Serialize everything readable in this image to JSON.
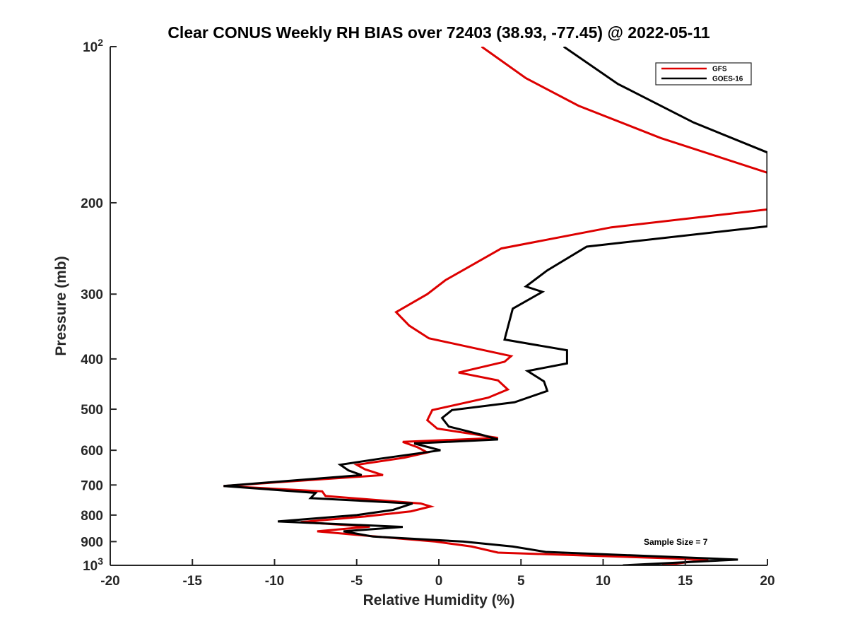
{
  "chart_data": {
    "type": "line",
    "title": "Clear CONUS Weekly RH BIAS over 72403 (38.93, -77.45) @ 2022-05-11",
    "xlabel": "Relative Humidity (%)",
    "ylabel": "Pressure (mb)",
    "xlim": [
      -20,
      20
    ],
    "ylim": [
      100,
      1000
    ],
    "yscale": "log",
    "y_reversed": true,
    "grid": false,
    "legend_position": "top-right",
    "xticks": [
      "-20",
      "-15",
      "-10",
      "-5",
      "0",
      "5",
      "10",
      "15",
      "20"
    ],
    "yticks": [
      {
        "value": 100,
        "base": "10",
        "exp": "2"
      },
      {
        "value": 200,
        "base": "200",
        "exp": ""
      },
      {
        "value": 300,
        "base": "300",
        "exp": ""
      },
      {
        "value": 400,
        "base": "400",
        "exp": ""
      },
      {
        "value": 500,
        "base": "500",
        "exp": ""
      },
      {
        "value": 600,
        "base": "600",
        "exp": ""
      },
      {
        "value": 700,
        "base": "700",
        "exp": ""
      },
      {
        "value": 800,
        "base": "800",
        "exp": ""
      },
      {
        "value": 900,
        "base": "900",
        "exp": ""
      },
      {
        "value": 1000,
        "base": "10",
        "exp": "3"
      }
    ],
    "annotation": "Sample Size = 7",
    "series": [
      {
        "name": "GFS",
        "color": "#dd0000",
        "points": [
          [
            2.6,
            100
          ],
          [
            5.3,
            115
          ],
          [
            8.5,
            130
          ],
          [
            13.5,
            150
          ],
          [
            20,
            175
          ],
          [
            20,
            206
          ],
          [
            10.5,
            223
          ],
          [
            3.8,
            245
          ],
          [
            0.4,
            282
          ],
          [
            -0.7,
            300
          ],
          [
            -2.6,
            325
          ],
          [
            -1.8,
            345
          ],
          [
            -0.6,
            365
          ],
          [
            4.4,
            395
          ],
          [
            4.0,
            405
          ],
          [
            1.2,
            425
          ],
          [
            3.6,
            440
          ],
          [
            4.2,
            458
          ],
          [
            3.0,
            475
          ],
          [
            -0.4,
            502
          ],
          [
            -0.7,
            525
          ],
          [
            -0.1,
            545
          ],
          [
            3.6,
            568
          ],
          [
            -2.2,
            578
          ],
          [
            -1.3,
            592
          ],
          [
            -0.7,
            606
          ],
          [
            -2.1,
            620
          ],
          [
            -5.0,
            640
          ],
          [
            -4.5,
            653
          ],
          [
            -3.4,
            670
          ],
          [
            -13.1,
            703
          ],
          [
            -7.1,
            720
          ],
          [
            -6.9,
            735
          ],
          [
            -1.1,
            760
          ],
          [
            -0.5,
            770
          ],
          [
            -1.7,
            787
          ],
          [
            -4.5,
            805
          ],
          [
            -8.4,
            825
          ],
          [
            -4.2,
            842
          ],
          [
            -7.4,
            860
          ],
          [
            -3.8,
            880
          ],
          [
            -0.2,
            900
          ],
          [
            2.0,
            920
          ],
          [
            3.6,
            945
          ],
          [
            16.4,
            975
          ],
          [
            13.6,
            1000
          ]
        ]
      },
      {
        "name": "GOES-16",
        "color": "#000000",
        "points": [
          [
            7.6,
            100
          ],
          [
            10.9,
            118
          ],
          [
            15.5,
            140
          ],
          [
            20,
            160
          ],
          [
            20,
            222
          ],
          [
            9.0,
            243
          ],
          [
            6.6,
            270
          ],
          [
            5.3,
            290
          ],
          [
            6.3,
            297
          ],
          [
            4.5,
            320
          ],
          [
            4.0,
            367
          ],
          [
            7.8,
            385
          ],
          [
            7.8,
            408
          ],
          [
            5.4,
            422
          ],
          [
            6.4,
            442
          ],
          [
            6.6,
            461
          ],
          [
            4.6,
            485
          ],
          [
            0.8,
            502
          ],
          [
            0.2,
            520
          ],
          [
            0.6,
            540
          ],
          [
            2.6,
            560
          ],
          [
            3.6,
            572
          ],
          [
            -1.5,
            582
          ],
          [
            0.1,
            600
          ],
          [
            -3.6,
            623
          ],
          [
            -6.0,
            640
          ],
          [
            -5.5,
            656
          ],
          [
            -4.7,
            670
          ],
          [
            -13.1,
            703
          ],
          [
            -7.5,
            725
          ],
          [
            -7.8,
            742
          ],
          [
            -1.6,
            760
          ],
          [
            -2.8,
            782
          ],
          [
            -5.0,
            800
          ],
          [
            -9.8,
            823
          ],
          [
            -2.2,
            843
          ],
          [
            -5.8,
            860
          ],
          [
            -4.0,
            880
          ],
          [
            1.5,
            900
          ],
          [
            4.5,
            920
          ],
          [
            6.5,
            942
          ],
          [
            18.2,
            975
          ],
          [
            11.2,
            1000
          ]
        ]
      }
    ]
  }
}
